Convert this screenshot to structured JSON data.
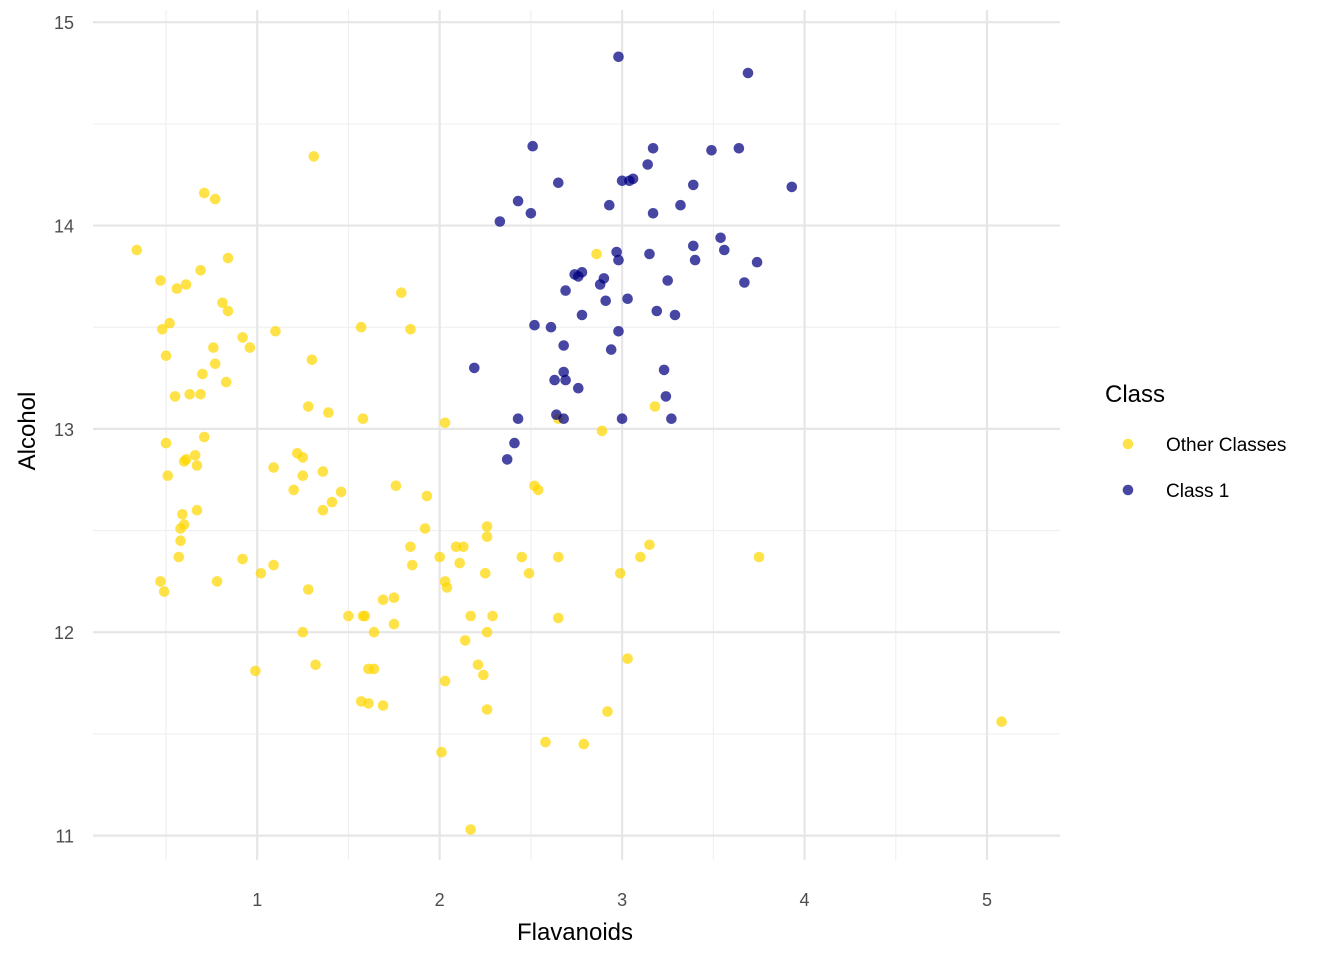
{
  "chart_data": {
    "type": "scatter",
    "xlabel": "Flavanoids",
    "ylabel": "Alcohol",
    "xlim": [
      0.1,
      5.4
    ],
    "ylim": [
      10.88,
      15.06
    ],
    "x_ticks": [
      1,
      2,
      3,
      4,
      5
    ],
    "y_ticks": [
      11,
      12,
      13,
      14,
      15
    ],
    "x_tick_labels": [
      "1",
      "2",
      "3",
      "4",
      "5"
    ],
    "y_tick_labels": [
      "11",
      "12",
      "13",
      "14",
      "15"
    ],
    "grid": true,
    "legend": {
      "title": "Class",
      "position": "right"
    },
    "series": [
      {
        "name": "Other Classes",
        "color": "#FFD700",
        "points": [
          [
            0.34,
            13.88
          ],
          [
            0.47,
            13.73
          ],
          [
            0.48,
            13.49
          ],
          [
            0.5,
            13.36
          ],
          [
            0.52,
            13.52
          ],
          [
            0.55,
            13.16
          ],
          [
            0.56,
            13.69
          ],
          [
            0.61,
            13.71
          ],
          [
            0.63,
            13.17
          ],
          [
            0.69,
            13.78
          ],
          [
            0.69,
            13.17
          ],
          [
            0.7,
            13.27
          ],
          [
            0.71,
            14.16
          ],
          [
            0.71,
            12.96
          ],
          [
            0.76,
            13.4
          ],
          [
            0.77,
            13.32
          ],
          [
            0.77,
            14.13
          ],
          [
            0.81,
            13.62
          ],
          [
            0.83,
            13.23
          ],
          [
            0.84,
            13.84
          ],
          [
            0.84,
            13.58
          ],
          [
            0.92,
            13.45
          ],
          [
            0.96,
            13.4
          ],
          [
            1.1,
            13.48
          ],
          [
            1.31,
            14.34
          ],
          [
            1.3,
            13.34
          ],
          [
            1.28,
            13.11
          ],
          [
            1.39,
            13.08
          ],
          [
            1.58,
            13.05
          ],
          [
            1.57,
            13.5
          ],
          [
            1.79,
            13.67
          ],
          [
            1.84,
            13.49
          ],
          [
            2.03,
            13.03
          ],
          [
            0.5,
            12.93
          ],
          [
            0.51,
            12.77
          ],
          [
            0.59,
            12.58
          ],
          [
            0.58,
            12.51
          ],
          [
            0.6,
            12.84
          ],
          [
            0.61,
            12.85
          ],
          [
            0.66,
            12.87
          ],
          [
            0.67,
            12.82
          ],
          [
            0.67,
            12.6
          ],
          [
            0.6,
            12.53
          ],
          [
            0.58,
            12.45
          ],
          [
            0.57,
            12.37
          ],
          [
            0.47,
            12.25
          ],
          [
            0.49,
            12.2
          ],
          [
            0.78,
            12.25
          ],
          [
            0.92,
            12.36
          ],
          [
            1.02,
            12.29
          ],
          [
            1.09,
            12.33
          ],
          [
            1.09,
            12.81
          ],
          [
            1.22,
            12.88
          ],
          [
            1.25,
            12.86
          ],
          [
            1.25,
            12.77
          ],
          [
            1.2,
            12.7
          ],
          [
            1.36,
            12.79
          ],
          [
            1.36,
            12.6
          ],
          [
            1.41,
            12.64
          ],
          [
            1.46,
            12.69
          ],
          [
            1.76,
            12.72
          ],
          [
            1.93,
            12.67
          ],
          [
            1.92,
            12.51
          ],
          [
            1.84,
            12.42
          ],
          [
            1.85,
            12.33
          ],
          [
            2.0,
            12.37
          ],
          [
            2.09,
            12.42
          ],
          [
            2.13,
            12.42
          ],
          [
            2.11,
            12.34
          ],
          [
            2.03,
            12.25
          ],
          [
            2.04,
            12.22
          ],
          [
            2.26,
            12.52
          ],
          [
            2.26,
            12.47
          ],
          [
            2.25,
            12.29
          ],
          [
            2.45,
            12.37
          ],
          [
            2.49,
            12.29
          ],
          [
            2.52,
            12.72
          ],
          [
            2.54,
            12.7
          ],
          [
            2.65,
            12.37
          ],
          [
            2.65,
            12.07
          ],
          [
            2.65,
            13.05
          ],
          [
            2.86,
            13.86
          ],
          [
            2.89,
            12.99
          ],
          [
            3.18,
            13.11
          ],
          [
            2.99,
            12.29
          ],
          [
            3.1,
            12.37
          ],
          [
            3.15,
            12.43
          ],
          [
            3.75,
            12.37
          ],
          [
            1.28,
            12.21
          ],
          [
            1.25,
            12.0
          ],
          [
            1.32,
            11.84
          ],
          [
            0.99,
            11.81
          ],
          [
            1.5,
            12.08
          ],
          [
            1.59,
            12.08
          ],
          [
            1.58,
            12.08
          ],
          [
            1.69,
            12.16
          ],
          [
            1.75,
            12.17
          ],
          [
            1.75,
            12.04
          ],
          [
            1.64,
            12.0
          ],
          [
            1.61,
            11.82
          ],
          [
            1.64,
            11.82
          ],
          [
            1.57,
            11.66
          ],
          [
            1.61,
            11.65
          ],
          [
            1.69,
            11.64
          ],
          [
            2.17,
            12.08
          ],
          [
            2.29,
            12.08
          ],
          [
            2.26,
            12.0
          ],
          [
            2.14,
            11.96
          ],
          [
            2.21,
            11.84
          ],
          [
            2.24,
            11.79
          ],
          [
            2.03,
            11.76
          ],
          [
            2.26,
            11.62
          ],
          [
            2.01,
            11.41
          ],
          [
            2.17,
            11.03
          ],
          [
            2.58,
            11.46
          ],
          [
            2.79,
            11.45
          ],
          [
            2.92,
            11.61
          ],
          [
            3.03,
            11.87
          ],
          [
            5.08,
            11.56
          ]
        ]
      },
      {
        "name": "Class 1",
        "color": "#000080",
        "points": [
          [
            2.98,
            14.83
          ],
          [
            3.69,
            14.75
          ],
          [
            2.51,
            14.39
          ],
          [
            3.17,
            14.38
          ],
          [
            3.49,
            14.37
          ],
          [
            3.64,
            14.38
          ],
          [
            3.14,
            14.3
          ],
          [
            3.0,
            14.22
          ],
          [
            3.04,
            14.22
          ],
          [
            3.06,
            14.23
          ],
          [
            2.65,
            14.21
          ],
          [
            3.39,
            14.2
          ],
          [
            3.93,
            14.19
          ],
          [
            2.43,
            14.12
          ],
          [
            2.93,
            14.1
          ],
          [
            3.32,
            14.1
          ],
          [
            2.5,
            14.06
          ],
          [
            3.17,
            14.06
          ],
          [
            2.33,
            14.02
          ],
          [
            3.54,
            13.94
          ],
          [
            3.39,
            13.9
          ],
          [
            3.56,
            13.88
          ],
          [
            2.97,
            13.87
          ],
          [
            3.15,
            13.86
          ],
          [
            2.98,
            13.83
          ],
          [
            3.4,
            13.83
          ],
          [
            3.74,
            13.82
          ],
          [
            2.78,
            13.77
          ],
          [
            2.74,
            13.76
          ],
          [
            2.76,
            13.75
          ],
          [
            2.9,
            13.74
          ],
          [
            3.25,
            13.73
          ],
          [
            3.67,
            13.72
          ],
          [
            2.88,
            13.71
          ],
          [
            2.69,
            13.68
          ],
          [
            3.03,
            13.64
          ],
          [
            2.91,
            13.63
          ],
          [
            3.19,
            13.58
          ],
          [
            2.78,
            13.56
          ],
          [
            3.29,
            13.56
          ],
          [
            2.52,
            13.51
          ],
          [
            2.61,
            13.5
          ],
          [
            2.98,
            13.48
          ],
          [
            2.68,
            13.41
          ],
          [
            2.94,
            13.39
          ],
          [
            2.19,
            13.3
          ],
          [
            3.23,
            13.29
          ],
          [
            2.68,
            13.28
          ],
          [
            2.63,
            13.24
          ],
          [
            2.69,
            13.24
          ],
          [
            2.76,
            13.2
          ],
          [
            3.24,
            13.16
          ],
          [
            2.64,
            13.07
          ],
          [
            2.43,
            13.05
          ],
          [
            2.68,
            13.05
          ],
          [
            3.0,
            13.05
          ],
          [
            3.27,
            13.05
          ],
          [
            2.41,
            12.93
          ],
          [
            2.37,
            12.85
          ]
        ]
      }
    ]
  }
}
